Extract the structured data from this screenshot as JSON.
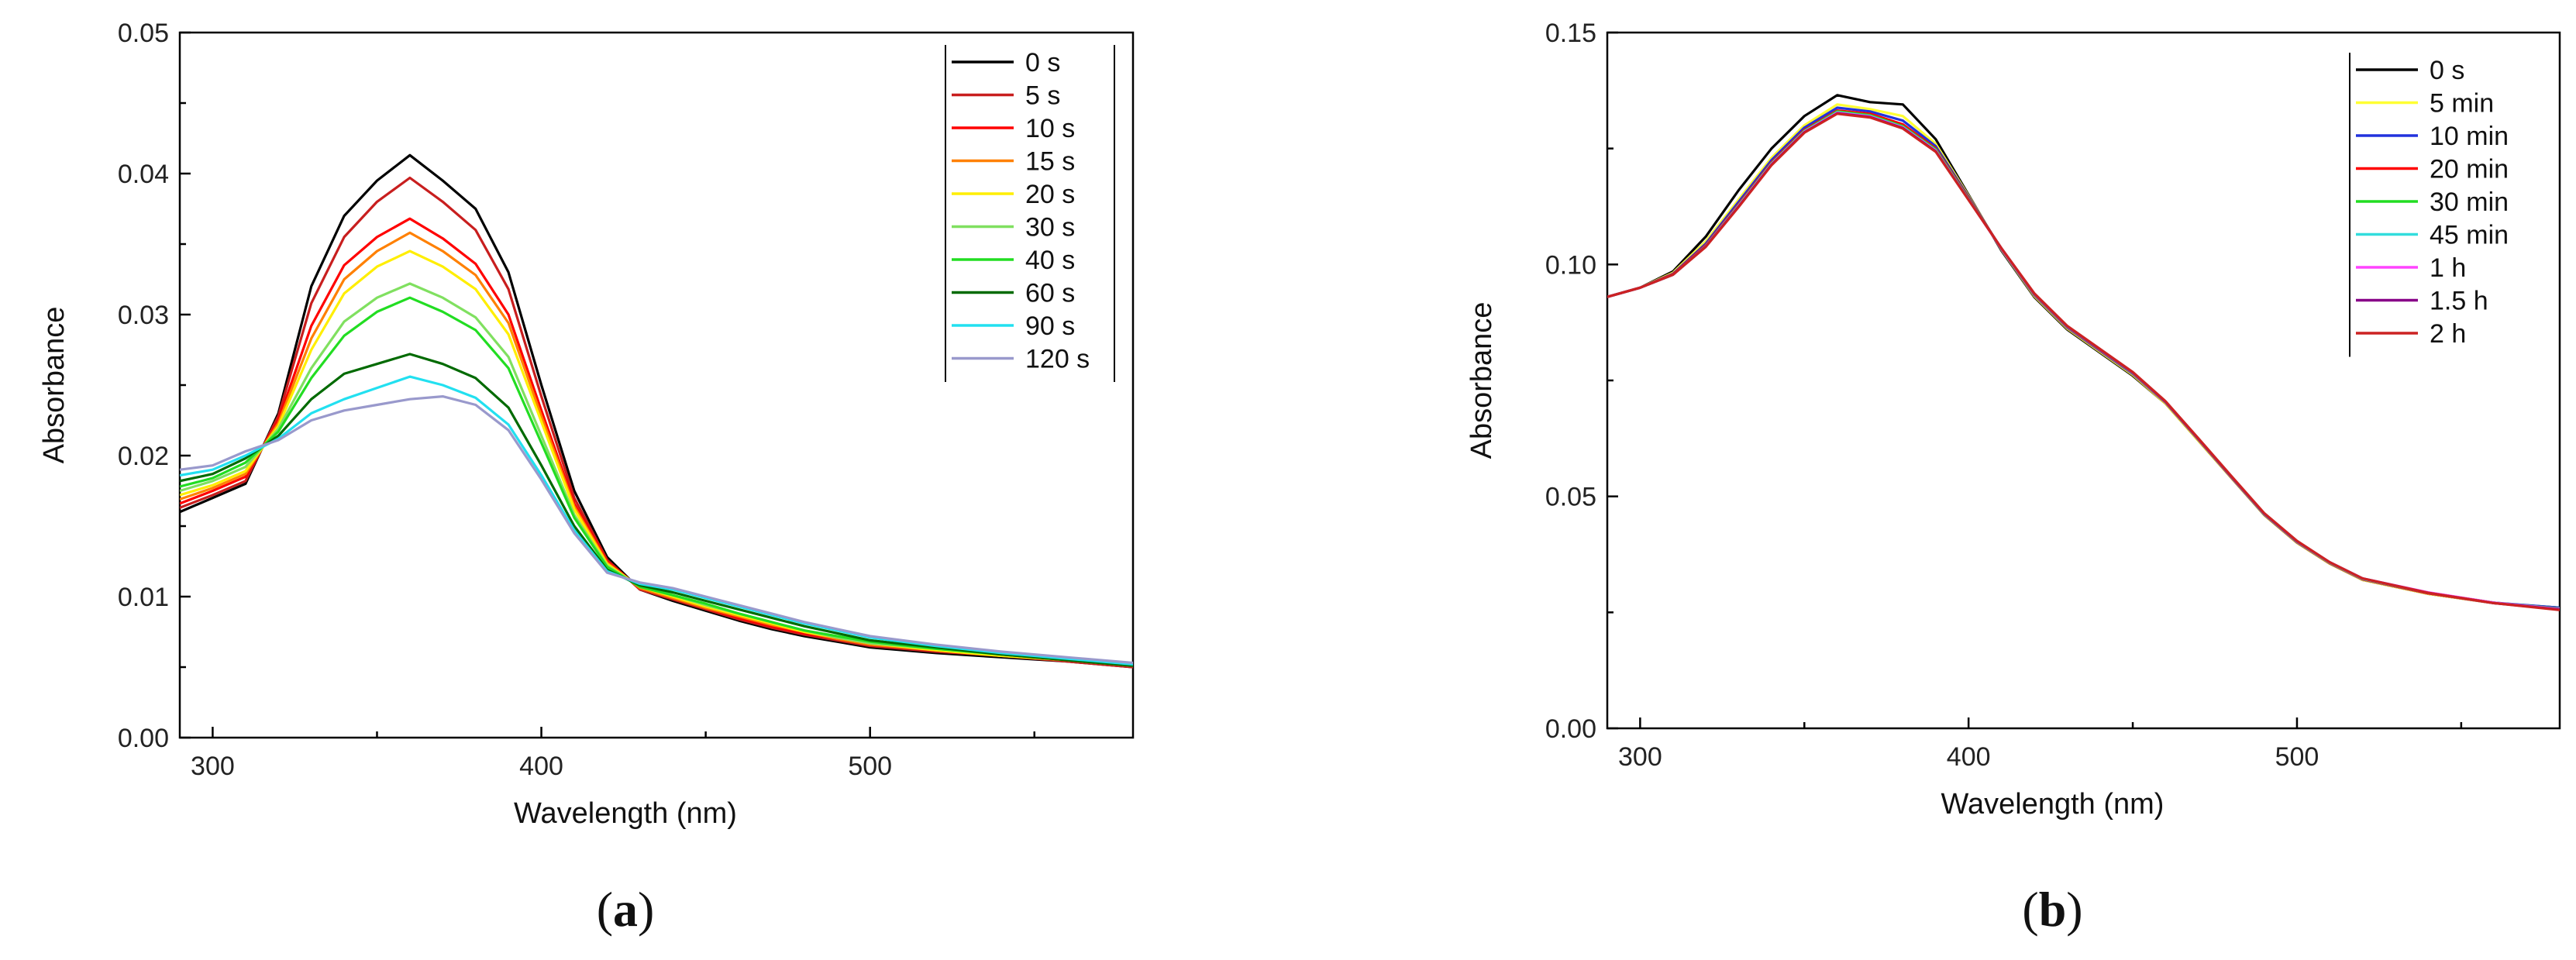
{
  "chart_data": [
    {
      "type": "line",
      "caption": {
        "open": "(",
        "letter": "a",
        "close": ")"
      },
      "xlabel": "Wavelength (nm)",
      "ylabel": "Absorbance",
      "xlim": [
        290,
        580
      ],
      "ylim": [
        0,
        0.05
      ],
      "xticks": [
        300,
        400,
        500
      ],
      "yticks": [
        0.0,
        0.01,
        0.02,
        0.03,
        0.04,
        0.05
      ],
      "ytick_decimals": 2,
      "legend_position": "top-right",
      "grid": false,
      "x": [
        290,
        300,
        310,
        320,
        330,
        340,
        350,
        360,
        370,
        380,
        390,
        400,
        410,
        420,
        430,
        440,
        450,
        460,
        470,
        480,
        490,
        500,
        520,
        540,
        560,
        580
      ],
      "series": [
        {
          "name": "0 s",
          "color": "#000000",
          "values": [
            0.016,
            0.017,
            0.018,
            0.023,
            0.032,
            0.037,
            0.0395,
            0.0413,
            0.0395,
            0.0375,
            0.033,
            0.025,
            0.0175,
            0.0128,
            0.0105,
            0.0097,
            0.009,
            0.0083,
            0.0077,
            0.0072,
            0.0068,
            0.0064,
            0.006,
            0.0057,
            0.0054,
            0.005
          ]
        },
        {
          "name": "5 s",
          "color": "#c81e1e",
          "values": [
            0.0163,
            0.0172,
            0.0182,
            0.0228,
            0.0308,
            0.0355,
            0.038,
            0.0397,
            0.038,
            0.036,
            0.0318,
            0.0242,
            0.017,
            0.0126,
            0.0105,
            0.0098,
            0.0091,
            0.0084,
            0.0078,
            0.0073,
            0.0069,
            0.0065,
            0.0061,
            0.0058,
            0.0054,
            0.005
          ]
        },
        {
          "name": "10 s",
          "color": "#ff0000",
          "values": [
            0.0166,
            0.0175,
            0.0185,
            0.0225,
            0.0292,
            0.0335,
            0.0355,
            0.0368,
            0.0354,
            0.0336,
            0.03,
            0.0232,
            0.0166,
            0.0125,
            0.0106,
            0.0099,
            0.0092,
            0.0085,
            0.0079,
            0.0074,
            0.007,
            0.0066,
            0.0062,
            0.0058,
            0.0055,
            0.0051
          ]
        },
        {
          "name": "15 s",
          "color": "#ff8000",
          "values": [
            0.0169,
            0.0177,
            0.0187,
            0.0223,
            0.0283,
            0.0325,
            0.0345,
            0.0358,
            0.0345,
            0.0328,
            0.0294,
            0.0228,
            0.0164,
            0.0124,
            0.0106,
            0.0099,
            0.0092,
            0.0086,
            0.008,
            0.0075,
            0.007,
            0.0066,
            0.0062,
            0.0058,
            0.0055,
            0.0051
          ]
        },
        {
          "name": "20 s",
          "color": "#ffee00",
          "values": [
            0.0172,
            0.0179,
            0.0189,
            0.0221,
            0.0275,
            0.0315,
            0.0334,
            0.0345,
            0.0334,
            0.0318,
            0.0286,
            0.0224,
            0.0162,
            0.0123,
            0.0107,
            0.01,
            0.0093,
            0.0087,
            0.0081,
            0.0075,
            0.0071,
            0.0067,
            0.0062,
            0.0058,
            0.0055,
            0.0051
          ]
        },
        {
          "name": "30 s",
          "color": "#80e060",
          "values": [
            0.0175,
            0.0182,
            0.0192,
            0.0219,
            0.0262,
            0.0295,
            0.0312,
            0.0322,
            0.0312,
            0.0298,
            0.027,
            0.0214,
            0.0158,
            0.0122,
            0.0107,
            0.0101,
            0.0094,
            0.0088,
            0.0082,
            0.0076,
            0.0071,
            0.0067,
            0.0063,
            0.0059,
            0.0055,
            0.0051
          ]
        },
        {
          "name": "40 s",
          "color": "#22dd22",
          "values": [
            0.0178,
            0.0184,
            0.0195,
            0.0217,
            0.0255,
            0.0285,
            0.0302,
            0.0312,
            0.0302,
            0.0289,
            0.0262,
            0.0209,
            0.0156,
            0.0121,
            0.0107,
            0.0101,
            0.0095,
            0.0088,
            0.0082,
            0.0076,
            0.0072,
            0.0068,
            0.0063,
            0.0059,
            0.0055,
            0.0051
          ]
        },
        {
          "name": "60 s",
          "color": "#006a00",
          "values": [
            0.0182,
            0.0187,
            0.0198,
            0.0214,
            0.024,
            0.0258,
            0.0265,
            0.0272,
            0.0265,
            0.0255,
            0.0234,
            0.0193,
            0.015,
            0.0119,
            0.0108,
            0.0103,
            0.0097,
            0.0091,
            0.0085,
            0.0079,
            0.0074,
            0.0069,
            0.0064,
            0.0059,
            0.0055,
            0.0051
          ]
        },
        {
          "name": "90 s",
          "color": "#22e0f0",
          "values": [
            0.0186,
            0.019,
            0.02,
            0.0212,
            0.023,
            0.024,
            0.0248,
            0.0256,
            0.025,
            0.0241,
            0.0222,
            0.0186,
            0.0147,
            0.0118,
            0.0109,
            0.0105,
            0.0099,
            0.0093,
            0.0087,
            0.0081,
            0.0076,
            0.0071,
            0.0065,
            0.006,
            0.0056,
            0.0052
          ]
        },
        {
          "name": "120 s",
          "color": "#9999cc",
          "values": [
            0.019,
            0.0193,
            0.0203,
            0.0211,
            0.0225,
            0.0232,
            0.0236,
            0.024,
            0.0242,
            0.0236,
            0.0218,
            0.0183,
            0.0145,
            0.0117,
            0.011,
            0.0106,
            0.01,
            0.0094,
            0.0088,
            0.0082,
            0.0077,
            0.0072,
            0.0066,
            0.0061,
            0.0057,
            0.0053
          ]
        }
      ]
    },
    {
      "type": "line",
      "caption": {
        "open": "(",
        "letter": "b",
        "close": ")"
      },
      "xlabel": "Wavelength (nm)",
      "ylabel": "Absorbance",
      "xlim": [
        290,
        580
      ],
      "ylim": [
        0,
        0.15
      ],
      "xticks": [
        300,
        400,
        500
      ],
      "yticks": [
        0.0,
        0.05,
        0.1,
        0.15
      ],
      "ytick_decimals": 2,
      "legend_position": "top-right",
      "grid": false,
      "x": [
        290,
        300,
        310,
        320,
        330,
        340,
        350,
        360,
        370,
        380,
        390,
        400,
        410,
        420,
        430,
        440,
        450,
        460,
        470,
        480,
        490,
        500,
        510,
        520,
        540,
        560,
        580
      ],
      "series": [
        {
          "name": "0 s",
          "color": "#000000",
          "values": [
            0.093,
            0.095,
            0.0985,
            0.106,
            0.116,
            0.125,
            0.132,
            0.1365,
            0.135,
            0.1345,
            0.127,
            0.115,
            0.103,
            0.093,
            0.086,
            0.081,
            0.076,
            0.07,
            0.062,
            0.054,
            0.046,
            0.04,
            0.0355,
            0.032,
            0.029,
            0.027,
            0.026
          ]
        },
        {
          "name": "5 min",
          "color": "#ffff33",
          "values": [
            0.093,
            0.095,
            0.0982,
            0.105,
            0.114,
            0.123,
            0.13,
            0.1345,
            0.1335,
            0.132,
            0.126,
            0.1148,
            0.1032,
            0.0932,
            0.0862,
            0.0812,
            0.0762,
            0.07,
            0.062,
            0.054,
            0.046,
            0.04,
            0.0355,
            0.032,
            0.029,
            0.027,
            0.0259
          ]
        },
        {
          "name": "10 min",
          "color": "#2233dd",
          "values": [
            0.093,
            0.095,
            0.098,
            0.1045,
            0.1135,
            0.1225,
            0.1295,
            0.1338,
            0.133,
            0.131,
            0.1255,
            0.1146,
            0.1033,
            0.0934,
            0.0864,
            0.0814,
            0.0764,
            0.0702,
            0.0622,
            0.0541,
            0.0461,
            0.0401,
            0.0356,
            0.0321,
            0.0291,
            0.0271,
            0.026
          ]
        },
        {
          "name": "20 min",
          "color": "#ff0000",
          "values": [
            0.093,
            0.095,
            0.0979,
            0.1042,
            0.113,
            0.122,
            0.129,
            0.1332,
            0.1325,
            0.1302,
            0.125,
            0.1144,
            0.1034,
            0.0935,
            0.0865,
            0.0815,
            0.0765,
            0.0702,
            0.0622,
            0.0541,
            0.0461,
            0.0401,
            0.0356,
            0.0321,
            0.0291,
            0.027,
            0.0258
          ]
        },
        {
          "name": "30 min",
          "color": "#22dd22",
          "values": [
            0.093,
            0.095,
            0.0978,
            0.104,
            0.1128,
            0.1218,
            0.1288,
            0.133,
            0.1322,
            0.1298,
            0.1248,
            0.1142,
            0.1034,
            0.0936,
            0.0866,
            0.0816,
            0.0766,
            0.0703,
            0.0623,
            0.0542,
            0.0462,
            0.0402,
            0.0357,
            0.0322,
            0.0292,
            0.0271,
            0.0258
          ]
        },
        {
          "name": "45 min",
          "color": "#33dddd",
          "values": [
            0.093,
            0.095,
            0.0978,
            0.104,
            0.1127,
            0.1217,
            0.1287,
            0.1328,
            0.132,
            0.1296,
            0.1246,
            0.1141,
            0.1034,
            0.0936,
            0.0866,
            0.0816,
            0.0766,
            0.0703,
            0.0623,
            0.0542,
            0.0462,
            0.0402,
            0.0357,
            0.0322,
            0.0292,
            0.027,
            0.0257
          ]
        },
        {
          "name": "1 h",
          "color": "#ff44ff",
          "values": [
            0.093,
            0.095,
            0.0978,
            0.1039,
            0.1126,
            0.1216,
            0.1286,
            0.1327,
            0.1319,
            0.1295,
            0.1245,
            0.114,
            0.1034,
            0.0937,
            0.0867,
            0.0817,
            0.0767,
            0.0704,
            0.0624,
            0.0543,
            0.0463,
            0.0403,
            0.0358,
            0.0323,
            0.0293,
            0.0271,
            0.0257
          ]
        },
        {
          "name": "1.5 h",
          "color": "#880088",
          "values": [
            0.093,
            0.095,
            0.0978,
            0.1039,
            0.1125,
            0.1215,
            0.1285,
            0.1326,
            0.1318,
            0.1294,
            0.1244,
            0.114,
            0.1035,
            0.0937,
            0.0867,
            0.0817,
            0.0767,
            0.0704,
            0.0624,
            0.0543,
            0.0463,
            0.0403,
            0.0358,
            0.0323,
            0.0292,
            0.027,
            0.0256
          ]
        },
        {
          "name": "2 h",
          "color": "#cc2222",
          "values": [
            0.093,
            0.095,
            0.0978,
            0.1038,
            0.1124,
            0.1214,
            0.1284,
            0.1325,
            0.1317,
            0.1293,
            0.1243,
            0.1139,
            0.1035,
            0.0938,
            0.0868,
            0.0818,
            0.0768,
            0.0705,
            0.0625,
            0.0544,
            0.0464,
            0.0404,
            0.0358,
            0.0323,
            0.0292,
            0.027,
            0.0255
          ]
        }
      ]
    }
  ]
}
